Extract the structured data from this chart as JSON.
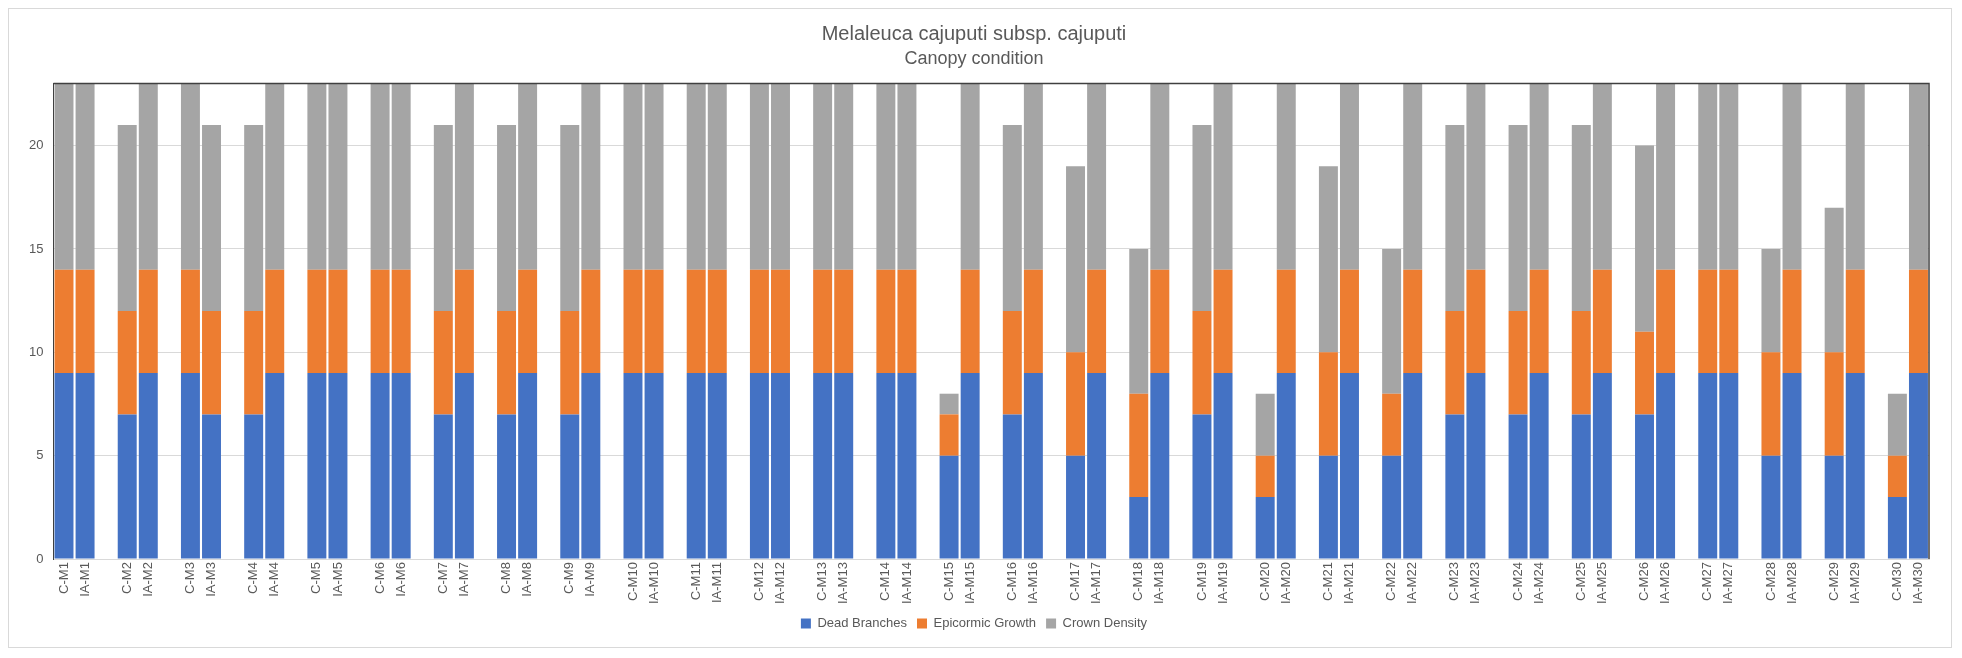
{
  "chart_data": {
    "type": "bar",
    "stacked": true,
    "title": "Melaleuca cajuputi subsp. cajuputi",
    "subtitle": "Canopy condition",
    "categories": [
      "C-M1",
      "IA-M1",
      null,
      "C-M2",
      "IA-M2",
      null,
      "C-M3",
      "IA-M3",
      null,
      "C-M4",
      "IA-M4",
      null,
      "C-M5",
      "IA-M5",
      null,
      "C-M6",
      "IA-M6",
      null,
      "C-M7",
      "IA-M7",
      null,
      "C-M8",
      "IA-M8",
      null,
      "C-M9",
      "IA-M9",
      null,
      "C-M10",
      "IA-M10",
      null,
      "C-M11",
      "IA-M11",
      null,
      "C-M12",
      "IA-M12",
      null,
      "C-M13",
      "IA-M13",
      null,
      "C-M14",
      "IA-M14",
      null,
      "C-M15",
      "IA-M15",
      null,
      "C-M16",
      "IA-M16",
      null,
      "C-M17",
      "IA-M17",
      null,
      "C-M18",
      "IA-M18",
      null,
      "C-M19",
      "IA-M19",
      null,
      "C-M20",
      "IA-M20",
      null,
      "C-M21",
      "IA-M21",
      null,
      "C-M22",
      "IA-M22",
      null,
      "C-M23",
      "IA-M23",
      null,
      "C-M24",
      "IA-M24",
      null,
      "C-M25",
      "IA-M25",
      null,
      "C-M26",
      "IA-M26",
      null,
      "C-M27",
      "IA-M27",
      null,
      "C-M28",
      "IA-M28",
      null,
      "C-M29",
      "IA-M29",
      null,
      "C-M30",
      "IA-M30"
    ],
    "series": [
      {
        "name": "Dead Branches",
        "color": "#4472c4",
        "values": [
          9,
          9,
          null,
          7,
          9,
          null,
          9,
          7,
          null,
          7,
          9,
          null,
          9,
          9,
          null,
          9,
          9,
          null,
          7,
          9,
          null,
          7,
          9,
          null,
          7,
          9,
          null,
          9,
          9,
          null,
          9,
          9,
          null,
          9,
          9,
          null,
          9,
          9,
          null,
          9,
          9,
          null,
          5,
          9,
          null,
          7,
          9,
          null,
          5,
          9,
          null,
          3,
          9,
          null,
          7,
          9,
          null,
          3,
          9,
          null,
          5,
          9,
          null,
          5,
          9,
          null,
          7,
          9,
          null,
          7,
          9,
          null,
          7,
          9,
          null,
          7,
          9,
          null,
          9,
          9,
          null,
          5,
          9,
          null,
          5,
          9,
          null,
          3,
          9
        ]
      },
      {
        "name": "Epicormic Growth",
        "color": "#ed7d31",
        "values": [
          5,
          5,
          null,
          5,
          5,
          null,
          5,
          5,
          null,
          5,
          5,
          null,
          5,
          5,
          null,
          5,
          5,
          null,
          5,
          5,
          null,
          5,
          5,
          null,
          5,
          5,
          null,
          5,
          5,
          null,
          5,
          5,
          null,
          5,
          5,
          null,
          5,
          5,
          null,
          5,
          5,
          null,
          2,
          5,
          null,
          5,
          5,
          null,
          5,
          5,
          null,
          5,
          5,
          null,
          5,
          5,
          null,
          2,
          5,
          null,
          5,
          5,
          null,
          3,
          5,
          null,
          5,
          5,
          null,
          5,
          5,
          null,
          5,
          5,
          null,
          4,
          5,
          null,
          5,
          5,
          null,
          5,
          5,
          null,
          5,
          5,
          null,
          2,
          5
        ]
      },
      {
        "name": "Crown Density",
        "color": "#a5a5a5",
        "values": [
          9,
          9,
          null,
          9,
          9,
          null,
          9,
          9,
          null,
          9,
          9,
          null,
          9,
          9,
          null,
          9,
          9,
          null,
          9,
          9,
          null,
          9,
          9,
          null,
          9,
          9,
          null,
          9,
          9,
          null,
          9,
          9,
          null,
          9,
          9,
          null,
          9,
          9,
          null,
          9,
          9,
          null,
          1,
          9,
          null,
          9,
          9,
          null,
          9,
          9,
          null,
          7,
          9,
          null,
          9,
          9,
          null,
          3,
          9,
          null,
          9,
          9,
          null,
          7,
          9,
          null,
          9,
          9,
          null,
          9,
          9,
          null,
          9,
          9,
          null,
          9,
          9,
          null,
          9,
          9,
          null,
          5,
          9,
          null,
          7,
          9,
          null,
          3,
          9
        ]
      }
    ],
    "ylim": [
      0,
      23
    ],
    "yticks": [
      0,
      5,
      10,
      15,
      20
    ],
    "grid": "y",
    "legend": "bottom"
  }
}
